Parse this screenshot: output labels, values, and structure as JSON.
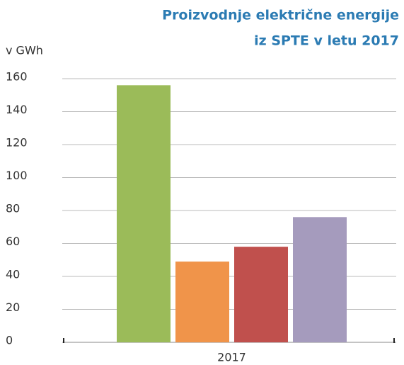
{
  "chart_data": {
    "type": "bar",
    "title": [
      "Proizvodnje električne energije",
      "iz SPTE v letu 2017"
    ],
    "y_axis_label": "v GWh",
    "categories": [
      "2017"
    ],
    "series": [
      {
        "color": "#9bbb59",
        "values": [
          156
        ]
      },
      {
        "color": "#f0944a",
        "values": [
          49
        ]
      },
      {
        "color": "#c0504d",
        "values": [
          58
        ]
      },
      {
        "color": "#a59bbd",
        "values": [
          76
        ]
      }
    ],
    "ylim": [
      0,
      160
    ],
    "yticks": [
      0,
      20,
      40,
      60,
      80,
      100,
      120,
      140,
      160
    ],
    "grid": true
  }
}
